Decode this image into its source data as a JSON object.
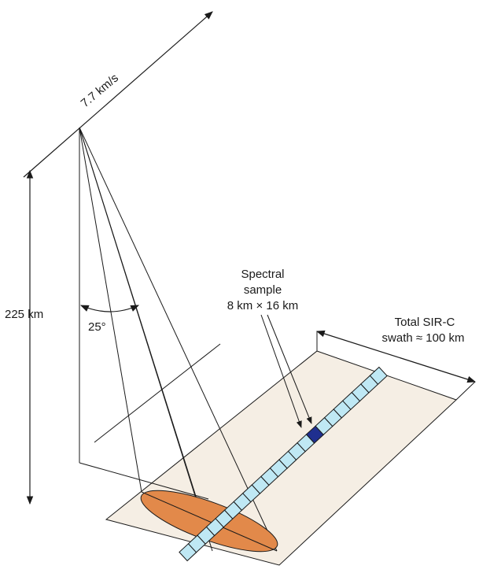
{
  "labels": {
    "velocity": "7.7 km/s",
    "altitude": "225 km",
    "angle": "25°",
    "spectral_line1": "Spectral",
    "spectral_line2": "sample",
    "spectral_line3": "8 km × 16 km",
    "swath_line1": "Total SIR-C",
    "swath_line2": "swath ≈ 100 km"
  },
  "colors": {
    "ground_plane": "#f5eee4",
    "footprint": "#e2894a",
    "strip_cell": "#bfe8f4",
    "highlight_cell": "#1f2f8f",
    "line": "#1a1a1a"
  }
}
